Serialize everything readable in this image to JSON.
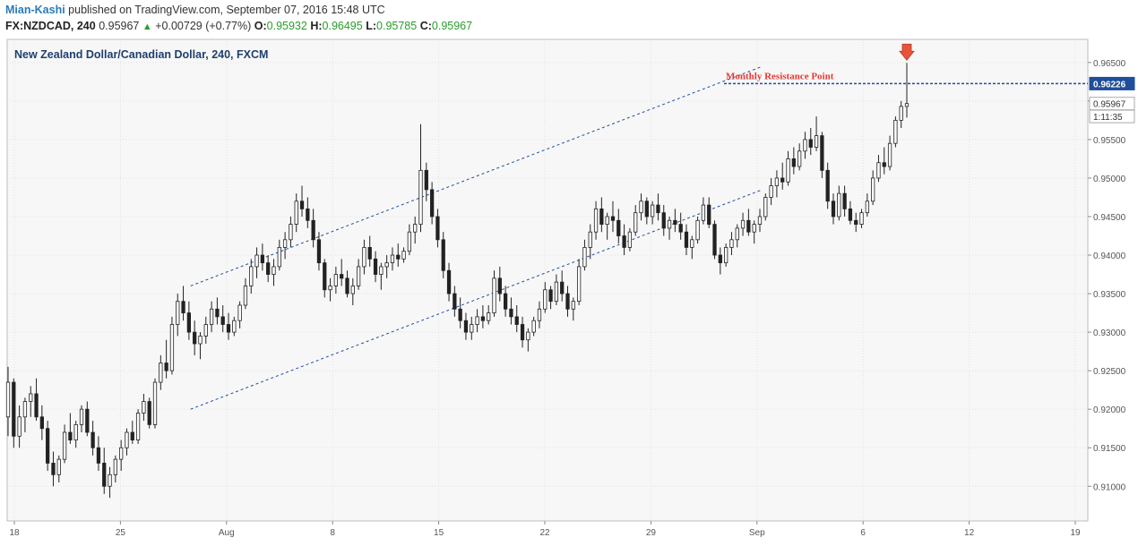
{
  "header": {
    "author": "Mian-Kashi",
    "published_text": "published on TradingView.com, September 07, 2016 15:48 UTC",
    "symbol": "FX:NZDCAD, 240",
    "last": "0.95967",
    "change_arrow": "▲",
    "change": "+0.00729 (+0.77%)",
    "open_label": "O:",
    "open": "0.95932",
    "high_label": "H:",
    "high": "0.96495",
    "low_label": "L:",
    "low": "0.95785",
    "close_label": "C:",
    "close": "0.95967"
  },
  "colors": {
    "up_text": "#2a9d2a",
    "author": "#2a7ab8",
    "candle": "#222222",
    "annotation": "#e53935",
    "channel_line": "#1f4e9a",
    "price_badge": "#1f4e9a",
    "grid": "#e2e2e2"
  },
  "chart_data": {
    "type": "candlestick",
    "title": "New Zealand Dollar/Canadian Dollar, 240, FXCM",
    "y_ticks": [
      "0.96500",
      "0.96000",
      "0.95500",
      "0.95000",
      "0.94500",
      "0.94000",
      "0.93500",
      "0.93000",
      "0.92500",
      "0.92000",
      "0.91500",
      "0.91000"
    ],
    "x_ticks": [
      "18",
      "25",
      "Aug",
      "8",
      "15",
      "22",
      "29",
      "Sep",
      "6",
      "12",
      "19"
    ],
    "ylim": [
      0.9055,
      0.968
    ],
    "grid": true,
    "annotation": {
      "text": "Monthly Resistance Point",
      "price": 0.96226
    },
    "price_labels": [
      {
        "text": "0.96226",
        "value": 0.96226
      },
      {
        "text": "0.95967",
        "value": 0.95967
      },
      {
        "text": "1:11:35",
        "value": 0.958
      }
    ],
    "channel": {
      "upper": {
        "from": [
          0.17,
          0.936
        ],
        "to": [
          0.7,
          0.9645
        ]
      },
      "lower": {
        "from": [
          0.17,
          0.92
        ],
        "to": [
          0.7,
          0.9485
        ]
      }
    },
    "candles": [
      [
        0.919,
        0.9255,
        0.9165,
        0.9235
      ],
      [
        0.9235,
        0.924,
        0.915,
        0.9165
      ],
      [
        0.9165,
        0.9205,
        0.915,
        0.919
      ],
      [
        0.919,
        0.9215,
        0.917,
        0.921
      ],
      [
        0.921,
        0.923,
        0.919,
        0.922
      ],
      [
        0.922,
        0.924,
        0.9185,
        0.919
      ],
      [
        0.919,
        0.9205,
        0.916,
        0.9175
      ],
      [
        0.9175,
        0.9185,
        0.912,
        0.913
      ],
      [
        0.913,
        0.9145,
        0.91,
        0.9115
      ],
      [
        0.9115,
        0.914,
        0.9105,
        0.9135
      ],
      [
        0.9135,
        0.918,
        0.913,
        0.917
      ],
      [
        0.917,
        0.9195,
        0.9155,
        0.916
      ],
      [
        0.916,
        0.9185,
        0.915,
        0.918
      ],
      [
        0.918,
        0.9205,
        0.917,
        0.92
      ],
      [
        0.92,
        0.921,
        0.9165,
        0.917
      ],
      [
        0.917,
        0.9185,
        0.914,
        0.915
      ],
      [
        0.915,
        0.9165,
        0.912,
        0.913
      ],
      [
        0.913,
        0.915,
        0.909,
        0.91
      ],
      [
        0.91,
        0.9125,
        0.9085,
        0.9115
      ],
      [
        0.9115,
        0.914,
        0.9105,
        0.9135
      ],
      [
        0.9135,
        0.916,
        0.912,
        0.915
      ],
      [
        0.915,
        0.9175,
        0.914,
        0.917
      ],
      [
        0.917,
        0.9185,
        0.9155,
        0.916
      ],
      [
        0.916,
        0.92,
        0.9155,
        0.9195
      ],
      [
        0.9195,
        0.922,
        0.9185,
        0.921
      ],
      [
        0.921,
        0.9215,
        0.9175,
        0.918
      ],
      [
        0.918,
        0.924,
        0.9175,
        0.9235
      ],
      [
        0.9235,
        0.927,
        0.9225,
        0.926
      ],
      [
        0.926,
        0.929,
        0.924,
        0.925
      ],
      [
        0.925,
        0.932,
        0.9245,
        0.931
      ],
      [
        0.931,
        0.935,
        0.9295,
        0.934
      ],
      [
        0.934,
        0.936,
        0.9315,
        0.9325
      ],
      [
        0.9325,
        0.934,
        0.929,
        0.93
      ],
      [
        0.93,
        0.9315,
        0.927,
        0.9285
      ],
      [
        0.9285,
        0.93,
        0.9265,
        0.9295
      ],
      [
        0.9295,
        0.932,
        0.9285,
        0.931
      ],
      [
        0.931,
        0.934,
        0.93,
        0.933
      ],
      [
        0.933,
        0.9345,
        0.931,
        0.932
      ],
      [
        0.932,
        0.9335,
        0.93,
        0.931
      ],
      [
        0.931,
        0.9325,
        0.929,
        0.93
      ],
      [
        0.93,
        0.932,
        0.9295,
        0.9315
      ],
      [
        0.9315,
        0.934,
        0.9305,
        0.9335
      ],
      [
        0.9335,
        0.937,
        0.933,
        0.936
      ],
      [
        0.936,
        0.9395,
        0.935,
        0.9385
      ],
      [
        0.9385,
        0.941,
        0.937,
        0.94
      ],
      [
        0.94,
        0.9415,
        0.938,
        0.939
      ],
      [
        0.939,
        0.94,
        0.9365,
        0.9375
      ],
      [
        0.9375,
        0.9395,
        0.936,
        0.9385
      ],
      [
        0.9385,
        0.942,
        0.938,
        0.941
      ],
      [
        0.941,
        0.943,
        0.9395,
        0.942
      ],
      [
        0.942,
        0.945,
        0.941,
        0.944
      ],
      [
        0.944,
        0.948,
        0.943,
        0.947
      ],
      [
        0.947,
        0.949,
        0.945,
        0.946
      ],
      [
        0.946,
        0.9475,
        0.9435,
        0.9445
      ],
      [
        0.9445,
        0.946,
        0.941,
        0.942
      ],
      [
        0.942,
        0.943,
        0.938,
        0.939
      ],
      [
        0.939,
        0.9395,
        0.9345,
        0.9355
      ],
      [
        0.9355,
        0.937,
        0.934,
        0.936
      ],
      [
        0.936,
        0.9385,
        0.935,
        0.9375
      ],
      [
        0.9375,
        0.9395,
        0.936,
        0.937
      ],
      [
        0.937,
        0.938,
        0.9345,
        0.935
      ],
      [
        0.935,
        0.937,
        0.9335,
        0.936
      ],
      [
        0.936,
        0.9395,
        0.9355,
        0.9385
      ],
      [
        0.9385,
        0.942,
        0.9375,
        0.941
      ],
      [
        0.941,
        0.9425,
        0.9385,
        0.9395
      ],
      [
        0.9395,
        0.9405,
        0.9365,
        0.9375
      ],
      [
        0.9375,
        0.939,
        0.9355,
        0.9385
      ],
      [
        0.9385,
        0.94,
        0.937,
        0.939
      ],
      [
        0.939,
        0.941,
        0.938,
        0.94
      ],
      [
        0.94,
        0.9415,
        0.9385,
        0.9395
      ],
      [
        0.9395,
        0.941,
        0.939,
        0.9405
      ],
      [
        0.9405,
        0.944,
        0.94,
        0.943
      ],
      [
        0.943,
        0.945,
        0.9415,
        0.944
      ],
      [
        0.944,
        0.957,
        0.943,
        0.951
      ],
      [
        0.951,
        0.952,
        0.947,
        0.9485
      ],
      [
        0.9485,
        0.9495,
        0.944,
        0.945
      ],
      [
        0.945,
        0.946,
        0.941,
        0.942
      ],
      [
        0.942,
        0.943,
        0.937,
        0.938
      ],
      [
        0.938,
        0.939,
        0.934,
        0.935
      ],
      [
        0.935,
        0.936,
        0.932,
        0.933
      ],
      [
        0.933,
        0.9345,
        0.9305,
        0.9315
      ],
      [
        0.9315,
        0.9325,
        0.929,
        0.93
      ],
      [
        0.93,
        0.932,
        0.929,
        0.931
      ],
      [
        0.931,
        0.933,
        0.93,
        0.932
      ],
      [
        0.932,
        0.9335,
        0.9305,
        0.9315
      ],
      [
        0.9315,
        0.9335,
        0.931,
        0.9325
      ],
      [
        0.9325,
        0.938,
        0.932,
        0.937
      ],
      [
        0.937,
        0.9385,
        0.934,
        0.935
      ],
      [
        0.935,
        0.936,
        0.932,
        0.933
      ],
      [
        0.933,
        0.9345,
        0.931,
        0.932
      ],
      [
        0.932,
        0.9335,
        0.93,
        0.931
      ],
      [
        0.931,
        0.932,
        0.928,
        0.929
      ],
      [
        0.929,
        0.9305,
        0.9275,
        0.93
      ],
      [
        0.93,
        0.932,
        0.9295,
        0.9315
      ],
      [
        0.9315,
        0.934,
        0.9305,
        0.933
      ],
      [
        0.933,
        0.9365,
        0.9325,
        0.9355
      ],
      [
        0.9355,
        0.936,
        0.933,
        0.934
      ],
      [
        0.934,
        0.9375,
        0.9335,
        0.9365
      ],
      [
        0.9365,
        0.938,
        0.934,
        0.935
      ],
      [
        0.935,
        0.936,
        0.932,
        0.933
      ],
      [
        0.933,
        0.9345,
        0.9315,
        0.934
      ],
      [
        0.934,
        0.9395,
        0.9335,
        0.9385
      ],
      [
        0.9385,
        0.942,
        0.938,
        0.941
      ],
      [
        0.941,
        0.944,
        0.9395,
        0.943
      ],
      [
        0.943,
        0.947,
        0.942,
        0.946
      ],
      [
        0.946,
        0.9475,
        0.943,
        0.944
      ],
      [
        0.944,
        0.9455,
        0.942,
        0.945
      ],
      [
        0.945,
        0.947,
        0.943,
        0.9445
      ],
      [
        0.9445,
        0.946,
        0.9415,
        0.9425
      ],
      [
        0.9425,
        0.944,
        0.94,
        0.941
      ],
      [
        0.941,
        0.9435,
        0.9405,
        0.943
      ],
      [
        0.943,
        0.9465,
        0.9425,
        0.9455
      ],
      [
        0.9455,
        0.948,
        0.9445,
        0.947
      ],
      [
        0.947,
        0.9475,
        0.944,
        0.945
      ],
      [
        0.945,
        0.947,
        0.944,
        0.9465
      ],
      [
        0.9465,
        0.948,
        0.9445,
        0.9455
      ],
      [
        0.9455,
        0.9465,
        0.9425,
        0.9435
      ],
      [
        0.9435,
        0.945,
        0.942,
        0.9445
      ],
      [
        0.9445,
        0.946,
        0.943,
        0.944
      ],
      [
        0.944,
        0.9455,
        0.942,
        0.943
      ],
      [
        0.943,
        0.944,
        0.94,
        0.941
      ],
      [
        0.941,
        0.9425,
        0.9395,
        0.942
      ],
      [
        0.942,
        0.945,
        0.9415,
        0.9445
      ],
      [
        0.9445,
        0.9475,
        0.944,
        0.9465
      ],
      [
        0.9465,
        0.9475,
        0.9435,
        0.944
      ],
      [
        0.944,
        0.9445,
        0.9395,
        0.94
      ],
      [
        0.94,
        0.941,
        0.9375,
        0.939
      ],
      [
        0.939,
        0.9415,
        0.9385,
        0.941
      ],
      [
        0.941,
        0.943,
        0.94,
        0.942
      ],
      [
        0.942,
        0.944,
        0.941,
        0.9435
      ],
      [
        0.9435,
        0.9455,
        0.9425,
        0.9445
      ],
      [
        0.9445,
        0.946,
        0.9425,
        0.943
      ],
      [
        0.943,
        0.9445,
        0.9415,
        0.944
      ],
      [
        0.944,
        0.946,
        0.943,
        0.945
      ],
      [
        0.945,
        0.948,
        0.9445,
        0.9475
      ],
      [
        0.9475,
        0.95,
        0.9465,
        0.949
      ],
      [
        0.949,
        0.951,
        0.9475,
        0.95
      ],
      [
        0.95,
        0.952,
        0.9485,
        0.9495
      ],
      [
        0.9495,
        0.9535,
        0.949,
        0.9525
      ],
      [
        0.9525,
        0.954,
        0.9505,
        0.9515
      ],
      [
        0.9515,
        0.9545,
        0.951,
        0.9535
      ],
      [
        0.9535,
        0.956,
        0.9525,
        0.955
      ],
      [
        0.955,
        0.9565,
        0.953,
        0.954
      ],
      [
        0.954,
        0.958,
        0.9535,
        0.9555
      ],
      [
        0.9555,
        0.956,
        0.95,
        0.951
      ],
      [
        0.951,
        0.952,
        0.946,
        0.947
      ],
      [
        0.947,
        0.948,
        0.944,
        0.945
      ],
      [
        0.945,
        0.949,
        0.9445,
        0.948
      ],
      [
        0.948,
        0.949,
        0.945,
        0.946
      ],
      [
        0.946,
        0.947,
        0.944,
        0.9445
      ],
      [
        0.9445,
        0.9455,
        0.943,
        0.944
      ],
      [
        0.944,
        0.946,
        0.9435,
        0.9455
      ],
      [
        0.9455,
        0.948,
        0.945,
        0.947
      ],
      [
        0.947,
        0.951,
        0.9465,
        0.95
      ],
      [
        0.95,
        0.953,
        0.9495,
        0.952
      ],
      [
        0.952,
        0.954,
        0.9505,
        0.9515
      ],
      [
        0.9515,
        0.9555,
        0.951,
        0.9545
      ],
      [
        0.9545,
        0.958,
        0.954,
        0.9575
      ],
      [
        0.9575,
        0.96,
        0.9565,
        0.9593
      ],
      [
        0.9593,
        0.96495,
        0.95785,
        0.95967
      ]
    ]
  }
}
